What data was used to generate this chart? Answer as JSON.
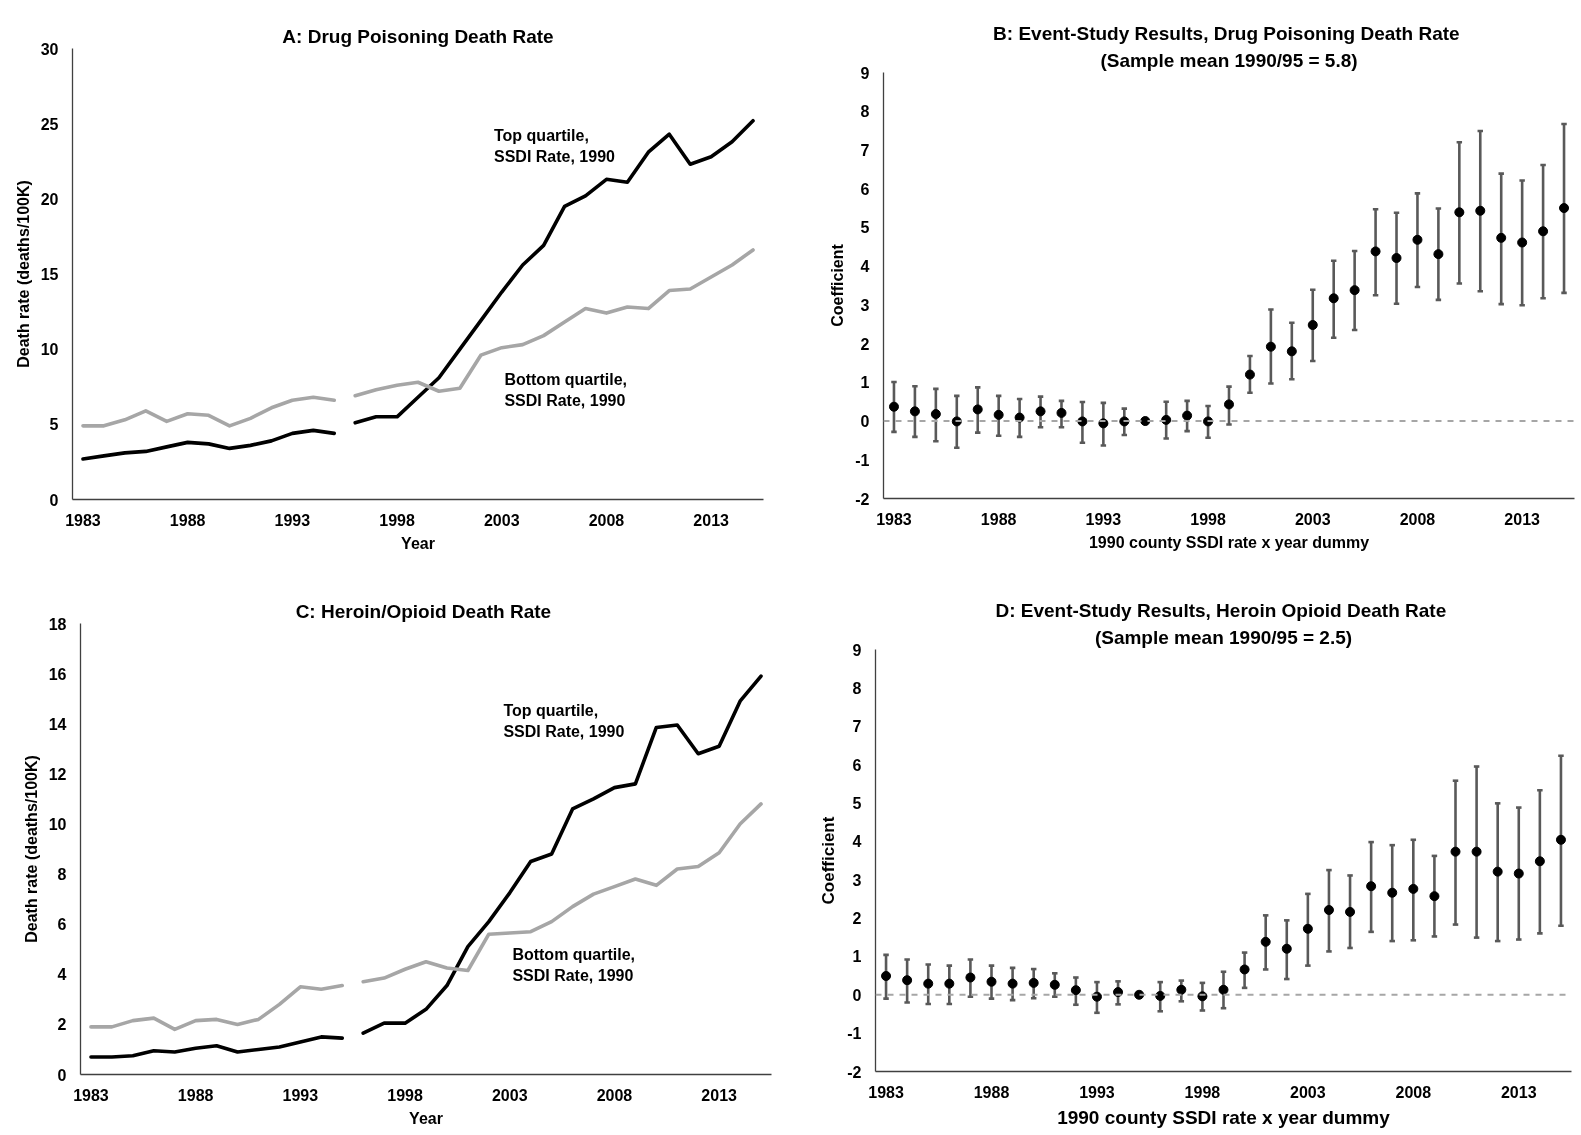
{
  "chart_data": [
    {
      "type": "line",
      "title": "A: Drug Poisoning Death Rate",
      "xlabel": "Year",
      "ylabel": "Death rate (deaths/100K)",
      "xlim": [
        1982.5,
        2015.5
      ],
      "xticks": [
        1983,
        1988,
        1993,
        1998,
        2003,
        2008,
        2013
      ],
      "ylim": [
        0,
        30
      ],
      "yticks": [
        0,
        5,
        10,
        15,
        20,
        25,
        30
      ],
      "grid": false,
      "series": [
        {
          "color": "#000000",
          "x": [
            1983,
            1984,
            1985,
            1986,
            1987,
            1988,
            1989,
            1990,
            1991,
            1992,
            1993,
            1994,
            1995
          ],
          "values": [
            2.7,
            2.9,
            3.1,
            3.2,
            3.5,
            3.8,
            3.7,
            3.4,
            3.6,
            3.9,
            4.4,
            4.6,
            4.4
          ]
        },
        {
          "name": "Top quartile, SSDI Rate, 1990",
          "color": "#000000",
          "x": [
            1996,
            1997,
            1998,
            1999,
            2000,
            2001,
            2002,
            2003,
            2004,
            2005,
            2006,
            2007,
            2008,
            2009,
            2010,
            2011,
            2012,
            2013,
            2014,
            2015
          ],
          "values": [
            5.1,
            5.5,
            5.5,
            6.8,
            8.1,
            10.0,
            11.9,
            13.8,
            15.6,
            16.9,
            19.5,
            20.2,
            21.3,
            21.1,
            23.1,
            24.3,
            22.3,
            22.8,
            23.8,
            25.2
          ]
        },
        {
          "color": "#a6a6a6",
          "x": [
            1983,
            1984,
            1985,
            1986,
            1987,
            1988,
            1989,
            1990,
            1991,
            1992,
            1993,
            1994,
            1995
          ],
          "values": [
            4.9,
            4.9,
            5.3,
            5.9,
            5.2,
            5.7,
            5.6,
            4.9,
            5.4,
            6.1,
            6.6,
            6.8,
            6.6
          ]
        },
        {
          "name": "Bottom quartile, SSDI Rate, 1990",
          "color": "#a6a6a6",
          "x": [
            1996,
            1997,
            1998,
            1999,
            2000,
            2001,
            2002,
            2003,
            2004,
            2005,
            2006,
            2007,
            2008,
            2009,
            2010,
            2011,
            2012,
            2013,
            2014,
            2015
          ],
          "values": [
            6.9,
            7.3,
            7.6,
            7.8,
            7.2,
            7.4,
            9.6,
            10.1,
            10.3,
            10.9,
            11.8,
            12.7,
            12.4,
            12.8,
            12.7,
            13.9,
            14.0,
            14.8,
            15.6,
            16.6
          ]
        }
      ]
    },
    {
      "type": "scatter",
      "title": "B:  Event-Study Results, Drug Poisoning Death Rate",
      "subtitle": "(Sample mean 1990/95 = 5.8)",
      "xlabel": "1990 county SSDI rate x year dummy",
      "ylabel": "Coefficient",
      "xlim": [
        1982.5,
        2015.5
      ],
      "xticks": [
        1983,
        1988,
        1993,
        1998,
        2003,
        2008,
        2013
      ],
      "ylim": [
        -2,
        9
      ],
      "yticks": [
        -2,
        -1,
        0,
        1,
        2,
        3,
        4,
        5,
        6,
        7,
        8,
        9
      ],
      "grid": false,
      "marker": "circle",
      "color": "#000000",
      "x": [
        1983,
        1984,
        1985,
        1986,
        1987,
        1988,
        1989,
        1990,
        1991,
        1992,
        1993,
        1994,
        1995,
        1996,
        1997,
        1998,
        1999,
        2000,
        2001,
        2002,
        2003,
        2004,
        2005,
        2006,
        2007,
        2008,
        2009,
        2010,
        2011,
        2012,
        2013,
        2014,
        2015
      ],
      "values": [
        0.37,
        0.25,
        0.18,
        -0.01,
        0.3,
        0.16,
        0.09,
        0.25,
        0.21,
        -0.01,
        -0.06,
        -0.01,
        0,
        0.03,
        0.14,
        -0.01,
        0.43,
        1.2,
        1.92,
        1.8,
        2.48,
        3.17,
        3.38,
        4.38,
        4.21,
        4.68,
        4.31,
        5.39,
        5.43,
        4.73,
        4.61,
        4.9,
        5.5
      ],
      "errors": [
        [
          -0.28,
          1.01
        ],
        [
          -0.41,
          0.9
        ],
        [
          -0.52,
          0.83
        ],
        [
          -0.69,
          0.65
        ],
        [
          -0.3,
          0.87
        ],
        [
          -0.38,
          0.65
        ],
        [
          -0.41,
          0.57
        ],
        [
          -0.16,
          0.63
        ],
        [
          -0.16,
          0.52
        ],
        [
          -0.56,
          0.49
        ],
        [
          -0.63,
          0.47
        ],
        [
          -0.36,
          0.32
        ],
        null,
        [
          -0.45,
          0.5
        ],
        [
          -0.26,
          0.52
        ],
        [
          -0.43,
          0.39
        ],
        [
          -0.09,
          0.89
        ],
        [
          0.73,
          1.68
        ],
        [
          0.97,
          2.88
        ],
        [
          1.08,
          2.54
        ],
        [
          1.55,
          3.39
        ],
        [
          2.15,
          4.14
        ],
        [
          2.35,
          4.39
        ],
        [
          3.25,
          5.47
        ],
        [
          3.03,
          5.38
        ],
        [
          3.46,
          5.88
        ],
        [
          3.13,
          5.49
        ],
        [
          3.55,
          7.2
        ],
        [
          3.35,
          7.49
        ],
        [
          3.02,
          6.39
        ],
        [
          2.99,
          6.21
        ],
        [
          3.17,
          6.61
        ],
        [
          3.31,
          7.67
        ]
      ],
      "ref_lines": [
        {
          "axis": "y",
          "value": 0,
          "color": "#a6a6a6",
          "line_style": "dashed"
        }
      ]
    },
    {
      "type": "line",
      "title": "C:  Heroin/Opioid Death Rate",
      "xlabel": "Year",
      "ylabel": "Death rate (deaths/100K)",
      "xlim": [
        1982.5,
        2015.5
      ],
      "xticks": [
        1983,
        1988,
        1993,
        1998,
        2003,
        2008,
        2013
      ],
      "ylim": [
        0,
        18
      ],
      "yticks": [
        0,
        2,
        4,
        6,
        8,
        10,
        12,
        14,
        16,
        18
      ],
      "grid": false,
      "series": [
        {
          "color": "#000000",
          "x": [
            1983,
            1984,
            1985,
            1986,
            1987,
            1988,
            1989,
            1990,
            1991,
            1992,
            1993,
            1994,
            1995
          ],
          "values": [
            0.7,
            0.7,
            0.75,
            0.95,
            0.9,
            1.05,
            1.15,
            0.9,
            1.0,
            1.1,
            1.3,
            1.5,
            1.45
          ]
        },
        {
          "name": "Top quartile, SSDI Rate, 1990",
          "color": "#000000",
          "x": [
            1996,
            1997,
            1998,
            1999,
            2000,
            2001,
            2002,
            2003,
            2004,
            2005,
            2006,
            2007,
            2008,
            2009,
            2010,
            2011,
            2012,
            2013,
            2014,
            2015
          ],
          "values": [
            1.65,
            2.05,
            2.05,
            2.6,
            3.55,
            5.1,
            6.1,
            7.25,
            8.5,
            8.8,
            10.6,
            11.0,
            11.45,
            11.6,
            13.85,
            13.95,
            12.8,
            13.1,
            14.9,
            15.9
          ]
        },
        {
          "color": "#a6a6a6",
          "x": [
            1983,
            1984,
            1985,
            1986,
            1987,
            1988,
            1989,
            1990,
            1991,
            1992,
            1993,
            1994,
            1995
          ],
          "values": [
            1.9,
            1.9,
            2.15,
            2.25,
            1.8,
            2.15,
            2.2,
            2.0,
            2.2,
            2.8,
            3.5,
            3.4,
            3.55
          ]
        },
        {
          "name": "Bottom quartile, SSDI Rate, 1990",
          "color": "#a6a6a6",
          "x": [
            1996,
            1997,
            1998,
            1999,
            2000,
            2001,
            2002,
            2003,
            2004,
            2005,
            2006,
            2007,
            2008,
            2009,
            2010,
            2011,
            2012,
            2013,
            2014,
            2015
          ],
          "values": [
            3.7,
            3.85,
            4.2,
            4.5,
            4.25,
            4.15,
            5.6,
            5.65,
            5.7,
            6.1,
            6.7,
            7.2,
            7.5,
            7.8,
            7.55,
            8.2,
            8.3,
            8.85,
            10.0,
            10.8
          ]
        }
      ]
    },
    {
      "type": "scatter",
      "title": "D:  Event-Study Results, Heroin Opioid Death Rate",
      "subtitle": "(Sample mean 1990/95 = 2.5)",
      "xlabel": "1990 county SSDI rate x year dummy",
      "ylabel": "Coefficient",
      "xlim": [
        1982.5,
        2015.5
      ],
      "xticks": [
        1983,
        1988,
        1993,
        1998,
        2003,
        2008,
        2013
      ],
      "ylim": [
        -2,
        9
      ],
      "yticks": [
        -2,
        -1,
        0,
        1,
        2,
        3,
        4,
        5,
        6,
        7,
        8,
        9
      ],
      "grid": false,
      "marker": "circle",
      "color": "#000000",
      "x": [
        1983,
        1984,
        1985,
        1986,
        1987,
        1988,
        1989,
        1990,
        1991,
        1992,
        1993,
        1994,
        1995,
        1996,
        1997,
        1998,
        1999,
        2000,
        2001,
        2002,
        2003,
        2004,
        2005,
        2006,
        2007,
        2008,
        2009,
        2010,
        2011,
        2012,
        2013,
        2014,
        2015
      ],
      "values": [
        0.49,
        0.38,
        0.29,
        0.29,
        0.45,
        0.34,
        0.29,
        0.31,
        0.26,
        0.12,
        -0.05,
        0.07,
        0,
        -0.03,
        0.13,
        -0.04,
        0.13,
        0.66,
        1.38,
        1.2,
        1.72,
        2.21,
        2.16,
        2.83,
        2.66,
        2.76,
        2.57,
        3.73,
        3.73,
        3.21,
        3.16,
        3.48,
        4.04
      ],
      "errors": [
        [
          -0.1,
          1.04
        ],
        [
          -0.2,
          0.92
        ],
        [
          -0.24,
          0.79
        ],
        [
          -0.24,
          0.76
        ],
        [
          -0.05,
          0.92
        ],
        [
          -0.1,
          0.76
        ],
        [
          -0.14,
          0.7
        ],
        [
          -0.09,
          0.67
        ],
        [
          -0.05,
          0.56
        ],
        [
          -0.26,
          0.45
        ],
        [
          -0.47,
          0.33
        ],
        [
          -0.25,
          0.35
        ],
        null,
        [
          -0.43,
          0.33
        ],
        [
          -0.17,
          0.37
        ],
        [
          -0.41,
          0.31
        ],
        [
          -0.35,
          0.6
        ],
        [
          0.18,
          1.1
        ],
        [
          0.66,
          2.07
        ],
        [
          0.41,
          1.94
        ],
        [
          0.76,
          2.63
        ],
        [
          1.13,
          3.25
        ],
        [
          1.22,
          3.11
        ],
        [
          1.64,
          3.98
        ],
        [
          1.4,
          3.9
        ],
        [
          1.42,
          4.04
        ],
        [
          1.52,
          3.62
        ],
        [
          1.83,
          5.58
        ],
        [
          1.49,
          5.95
        ],
        [
          1.4,
          4.99
        ],
        [
          1.44,
          4.88
        ],
        [
          1.6,
          5.33
        ],
        [
          1.8,
          6.23
        ]
      ],
      "ref_lines": [
        {
          "axis": "y",
          "value": 0,
          "color": "#a6a6a6",
          "line_style": "dashed"
        }
      ]
    }
  ]
}
